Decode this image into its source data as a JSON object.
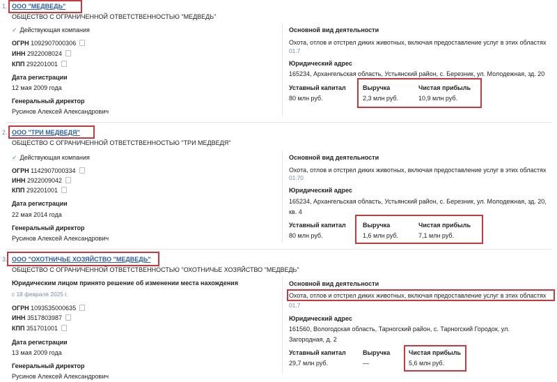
{
  "labels": {
    "ogrn": "ОГРН",
    "inn": "ИНН",
    "kpp": "КПП",
    "reg_date": "Дата регистрации",
    "director": "Генеральный директор",
    "activity": "Основной вид деятельности",
    "address": "Юридический адрес",
    "capital": "Уставный капитал",
    "revenue": "Выручка",
    "profit": "Чистая прибыль"
  },
  "companies": [
    {
      "index": "1.",
      "name": "ООО \"МЕДВЕДЬ\"",
      "full_name": "ОБЩЕСТВО С ОГРАНИЧЕННОЙ ОТВЕТСТВЕННОСТЬЮ \"МЕДВЕДЬ\"",
      "status": "Действующая компания",
      "ogrn": "1092907000306",
      "inn": "2922008024",
      "kpp": "292201001",
      "reg_date": "12 мая 2009 года",
      "director": "Русинов Алексей Александрович",
      "activity": "Охота, отлов и отстрел диких животных, включая предоставление услуг в этих областях",
      "activity_code": "01.7",
      "address_line1": "165234, Архангельская область, Устьянский район, с. Березник, ул. Молодежная, зд. 20",
      "capital": "80 млн руб.",
      "revenue": "2,3 млн руб.",
      "profit": "10,9 млн руб."
    },
    {
      "index": "2.",
      "name": "ООО \"ТРИ МЕДВЕДЯ\"",
      "full_name": "ОБЩЕСТВО С ОГРАНИЧЕННОЙ ОТВЕТСТВЕННОСТЬЮ \"ТРИ МЕДВЕДЯ\"",
      "status": "Действующая компания",
      "ogrn": "1142907000334",
      "inn": "2922009042",
      "kpp": "292201001",
      "reg_date": "22 мая 2014 года",
      "director": "Русинов Алексей Александрович",
      "activity": "Охота, отлов и отстрел диких животных, включая предоставление услуг в этих областях",
      "activity_code": "01.70",
      "address_line1": "165234, Архангельская область, Устьянский район, с. Березник, ул. Молодежная, зд. 20,",
      "address_line2": "кв. 4",
      "capital": "80 млн руб.",
      "revenue": "1,6 млн руб.",
      "profit": "7,1 млн руб."
    },
    {
      "index": "3.",
      "name": "ООО \"ОХОТНИЧЬЕ ХОЗЯЙСТВО \"МЕДВЕДЬ\"",
      "full_name": "ОБЩЕСТВО С ОГРАНИЧЕННОЙ ОТВЕТСТВЕННОСТЬЮ \"ОХОТНИЧЬЕ ХОЗЯЙСТВО \"МЕДВЕДЬ\"",
      "status": "Юридическим лицом принято решение об изменении места нахождения",
      "status_date": "с 18 февраля 2025 г.",
      "ogrn": "1093535000635",
      "inn": "3517803987",
      "kpp": "351701001",
      "reg_date": "13 мая 2009 года",
      "director": "Русинов Алексей Александрович",
      "activity": "Охота, отлов и отстрел диких животных, включая предоставление услуг в этих областях",
      "activity_code": "01.7",
      "address_line1": "161560, Вологодская область, Тарногский район, с. Тарногский Городок, ул.",
      "address_line2": "Загородная, д. 2",
      "capital": "29,7 млн руб.",
      "revenue": "—",
      "profit": "5,6 млн руб."
    }
  ]
}
